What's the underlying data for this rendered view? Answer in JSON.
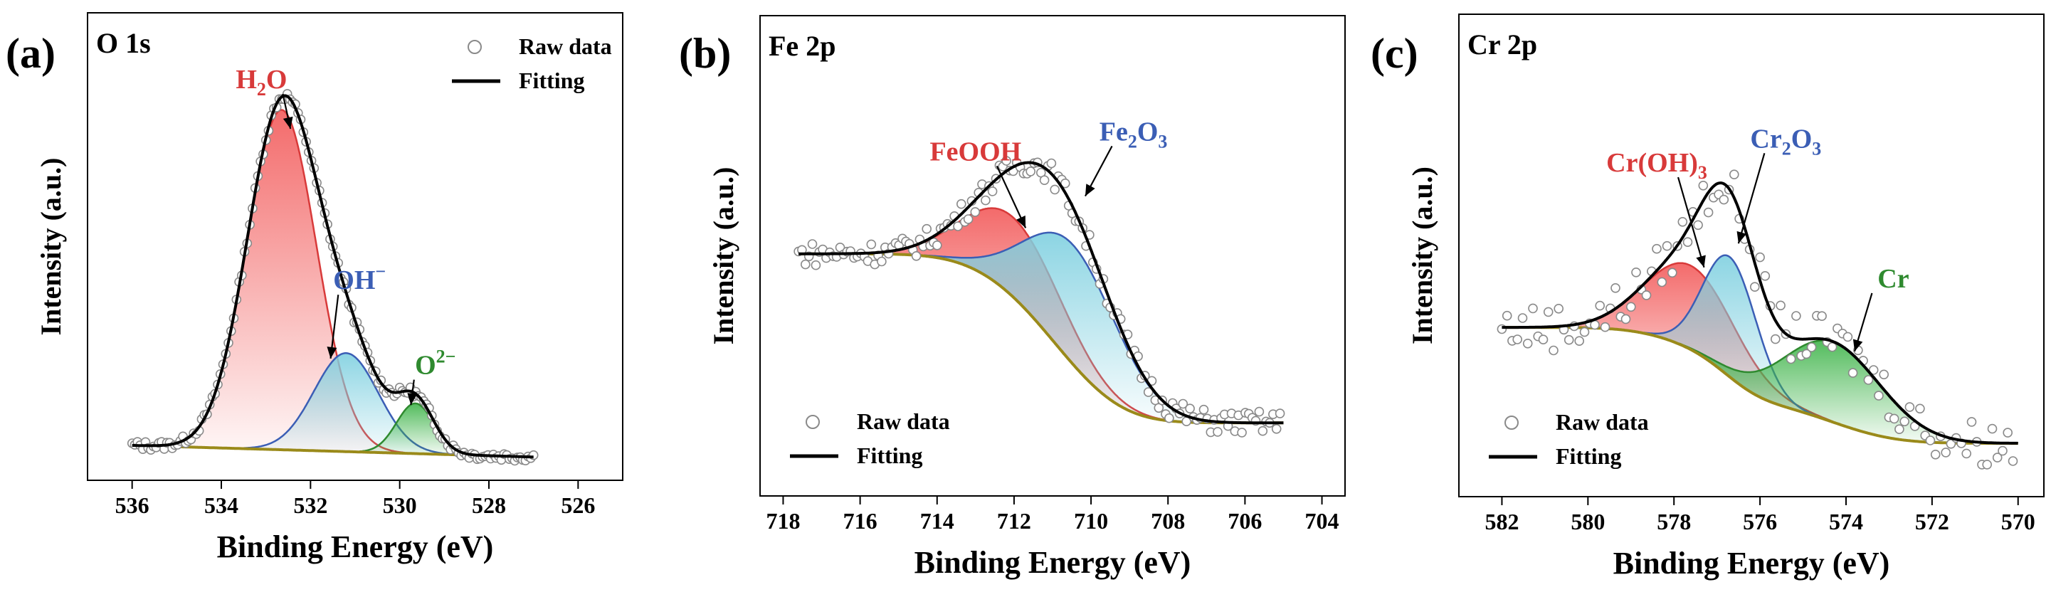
{
  "chart_data": [
    {
      "type": "line",
      "panel_label": "(a)",
      "title": "O 1s",
      "xlabel": "Binding Energy (eV)",
      "ylabel": "Intensity (a.u.)",
      "xlim": [
        537,
        525
      ],
      "x_reversed": true,
      "ylim": [
        0,
        1.1
      ],
      "xticks": [
        536,
        534,
        532,
        530,
        528,
        526
      ],
      "legend": {
        "position": "top-right",
        "items": [
          {
            "label": "Raw data",
            "type": "marker-circle"
          },
          {
            "label": "Fitting",
            "type": "line"
          }
        ]
      },
      "baseline": {
        "start": [
          536.0,
          0.035
        ],
        "end": [
          527.0,
          0.005
        ]
      },
      "raw_data": {
        "x_range": [
          536.0,
          527.0
        ],
        "step": 0.06,
        "noise": 0.012
      },
      "peaks": [
        {
          "name": "H₂O",
          "label_base": "H",
          "label_sub": "2",
          "label_rest": "O",
          "center": 532.65,
          "height": 0.88,
          "sigma": 0.78,
          "color": "#d83a3a",
          "fill": "#f25a5a",
          "label_at": [
            533.1,
            0.96
          ],
          "arrow_to": [
            532.45,
            0.855
          ]
        },
        {
          "name": "OH⁻",
          "label_base": "OH",
          "label_sup": "−",
          "center": 531.2,
          "height": 0.255,
          "sigma": 0.72,
          "color": "#3b5eb5",
          "fill": "#7fd0e0",
          "label_at": [
            530.9,
            0.44
          ],
          "arrow_to": [
            531.55,
            0.26
          ]
        },
        {
          "name": "O²⁻",
          "label_base": "O",
          "label_sup": "2−",
          "center": 529.65,
          "height": 0.13,
          "sigma": 0.42,
          "color": "#2f8a2f",
          "fill": "#3fb44a",
          "label_at": [
            529.2,
            0.22
          ],
          "arrow_to": [
            529.75,
            0.14
          ]
        }
      ]
    },
    {
      "type": "line",
      "panel_label": "(b)",
      "title": "Fe 2p",
      "xlabel": "Binding Energy (eV)",
      "ylabel": "Intensity (a.u.)",
      "xlim": [
        718.6,
        703.4
      ],
      "x_reversed": true,
      "ylim": [
        0,
        1.1
      ],
      "xticks": [
        718,
        716,
        714,
        712,
        710,
        708,
        706,
        704
      ],
      "legend": {
        "position": "bottom-left",
        "items": [
          {
            "label": "Raw data",
            "type": "marker-circle"
          },
          {
            "label": "Fitting",
            "type": "line"
          }
        ]
      },
      "baseline": {
        "shirley": true,
        "hi_x": 717.6,
        "hi_y": 0.555,
        "lo_x": 705.0,
        "lo_y": 0.13
      },
      "raw_data": {
        "x_range": [
          717.6,
          705.0
        ],
        "step": 0.09,
        "noise": 0.03
      },
      "peaks": [
        {
          "name": "FeOOH",
          "label_base": "FeOOH",
          "center": 712.0,
          "height": 0.2,
          "sigma": 1.25,
          "color": "#d83a3a",
          "fill": "#f25a5a",
          "label_at": [
            713.0,
            0.79
          ],
          "arrow_to": [
            711.7,
            0.62
          ]
        },
        {
          "name": "Fe₂O₃",
          "label_base": "Fe",
          "label_sub": "2",
          "label_rest": "O",
          "label_sub2": "3",
          "center": 710.45,
          "height": 0.3,
          "sigma": 1.2,
          "color": "#3b5eb5",
          "fill": "#7fd0e0",
          "label_at": [
            708.9,
            0.84
          ],
          "arrow_to": [
            710.15,
            0.7
          ]
        }
      ]
    },
    {
      "type": "line",
      "panel_label": "(c)",
      "title": "Cr 2p",
      "xlabel": "Binding Energy (eV)",
      "ylabel": "Intensity (a.u.)",
      "xlim": [
        583,
        569.4
      ],
      "x_reversed": true,
      "ylim": [
        0,
        1.1
      ],
      "xticks": [
        582,
        580,
        578,
        576,
        574,
        572,
        570
      ],
      "legend": {
        "position": "bottom-left",
        "items": [
          {
            "label": "Raw data",
            "type": "marker-circle"
          },
          {
            "label": "Fitting",
            "type": "line"
          }
        ]
      },
      "baseline": {
        "shirley": true,
        "hi_x": 582.0,
        "hi_y": 0.37,
        "lo_x": 570.0,
        "lo_y": 0.08
      },
      "raw_data": {
        "x_range": [
          582.0,
          570.0
        ],
        "step": 0.12,
        "noise": 0.06
      },
      "peaks": [
        {
          "name": "Cr(OH)₃",
          "label_base": "Cr(OH)",
          "label_sub": "3",
          "center": 577.6,
          "height": 0.21,
          "sigma": 1.05,
          "color": "#d83a3a",
          "fill": "#f25a5a",
          "label_at": [
            578.4,
            0.76
          ],
          "arrow_to": [
            577.3,
            0.52
          ]
        },
        {
          "name": "Cr₂O₃",
          "label_base": "Cr",
          "label_sub": "2",
          "label_rest": "O",
          "label_sub2": "3",
          "center": 576.7,
          "height": 0.3,
          "sigma": 0.62,
          "color": "#3b5eb5",
          "fill": "#7fd0e0",
          "label_at": [
            575.4,
            0.82
          ],
          "arrow_to": [
            576.5,
            0.58
          ]
        },
        {
          "name": "Cr",
          "label_base": "Cr",
          "center": 574.3,
          "height": 0.2,
          "sigma": 1.15,
          "color": "#2f8a2f",
          "fill": "#3fb44a",
          "label_at": [
            572.9,
            0.47
          ],
          "arrow_to": [
            573.8,
            0.31
          ]
        }
      ]
    }
  ]
}
